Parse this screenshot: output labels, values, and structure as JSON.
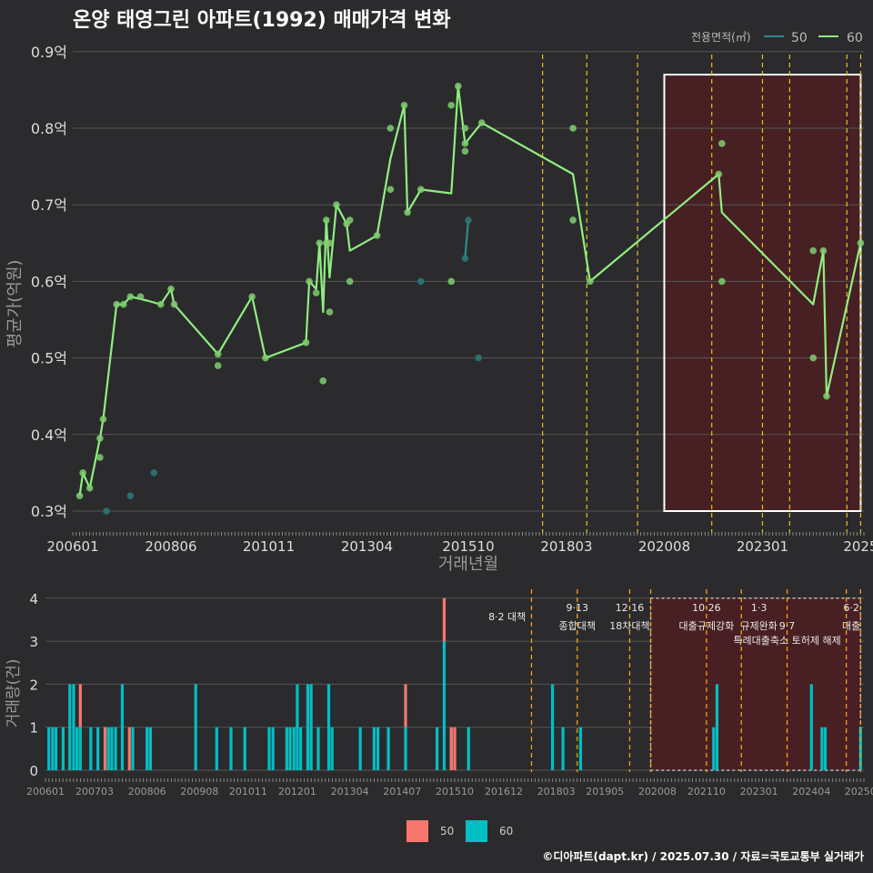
{
  "title": "온양 태영그린 아파트(1992) 매매가격 변화",
  "footer": "©디아파트(dapt.kr) / 2025.07.30 / 자료=국토교통부 실거래가",
  "colors": {
    "bg": "#2b2b2d",
    "s50_line": "#2a8a8a",
    "s60_line": "#90ee80",
    "s50_bar": "#f8766d",
    "s60_bar": "#00bfc4",
    "policy": "#e6c21a",
    "highlight_border": "#ffffff",
    "highlight_fill": "#4a1f22"
  },
  "chart_data": [
    {
      "type": "line",
      "title": "온양 태영그린 아파트(1992) 매매가격 변화",
      "xlabel": "거래년월",
      "ylabel": "평균가(억원)",
      "ylim": [
        0.28,
        0.9
      ],
      "yticks": [
        0.3,
        0.4,
        0.5,
        0.6,
        0.7,
        0.8,
        0.9
      ],
      "ytick_labels": [
        "0.3억",
        "0.4억",
        "0.5억",
        "0.6억",
        "0.7억",
        "0.8억",
        "0.9억"
      ],
      "xlim": [
        2006.0,
        2025.5
      ],
      "xticks": [
        2006.0,
        2008.42,
        2010.83,
        2013.25,
        2015.75,
        2018.17,
        2020.58,
        2023.0,
        2025.42
      ],
      "xtick_labels": [
        "200601",
        "200806",
        "201011",
        "201304",
        "201510",
        "201803",
        "202008",
        "202301",
        "2025"
      ],
      "legend_title": "전용면적(㎡)",
      "legend": [
        "50",
        "60"
      ],
      "policy_lines": [
        2017.58,
        2018.67,
        2019.92,
        2021.75,
        2023.0,
        2023.67,
        2025.08,
        2025.42
      ],
      "highlight_range": {
        "x": [
          2020.58,
          2025.42
        ],
        "y": [
          0.3,
          0.87
        ]
      },
      "series": [
        {
          "name": "60",
          "line": [
            [
              2006.17,
              0.32
            ],
            [
              2006.25,
              0.35
            ],
            [
              2006.42,
              0.33
            ],
            [
              2006.67,
              0.395
            ],
            [
              2006.75,
              0.42
            ],
            [
              2007.08,
              0.57
            ],
            [
              2007.25,
              0.57
            ],
            [
              2007.42,
              0.58
            ],
            [
              2007.83,
              0.575
            ],
            [
              2008.17,
              0.57
            ],
            [
              2008.42,
              0.59
            ],
            [
              2008.5,
              0.57
            ],
            [
              2009.58,
              0.505
            ],
            [
              2010.42,
              0.58
            ],
            [
              2010.75,
              0.5
            ],
            [
              2011.75,
              0.52
            ],
            [
              2011.83,
              0.6
            ],
            [
              2012.0,
              0.59
            ],
            [
              2012.08,
              0.65
            ],
            [
              2012.17,
              0.56
            ],
            [
              2012.25,
              0.68
            ],
            [
              2012.33,
              0.605
            ],
            [
              2012.5,
              0.7
            ],
            [
              2012.75,
              0.675
            ],
            [
              2012.83,
              0.64
            ],
            [
              2013.5,
              0.66
            ],
            [
              2013.83,
              0.76
            ],
            [
              2014.17,
              0.83
            ],
            [
              2014.25,
              0.69
            ],
            [
              2014.58,
              0.72
            ],
            [
              2015.33,
              0.715
            ],
            [
              2015.5,
              0.855
            ],
            [
              2015.67,
              0.78
            ],
            [
              2016.08,
              0.807
            ],
            [
              2018.33,
              0.74
            ],
            [
              2018.75,
              0.6
            ],
            [
              2021.92,
              0.74
            ],
            [
              2022.0,
              0.69
            ],
            [
              2024.25,
              0.57
            ],
            [
              2024.5,
              0.64
            ],
            [
              2024.58,
              0.45
            ],
            [
              2025.42,
              0.65
            ]
          ],
          "points": [
            [
              2006.17,
              0.32
            ],
            [
              2006.25,
              0.35
            ],
            [
              2006.42,
              0.33
            ],
            [
              2006.67,
              0.395
            ],
            [
              2006.67,
              0.37
            ],
            [
              2006.75,
              0.42
            ],
            [
              2007.08,
              0.57
            ],
            [
              2007.25,
              0.57
            ],
            [
              2007.42,
              0.58
            ],
            [
              2007.67,
              0.58
            ],
            [
              2008.17,
              0.57
            ],
            [
              2008.42,
              0.59
            ],
            [
              2008.5,
              0.57
            ],
            [
              2009.58,
              0.505
            ],
            [
              2009.58,
              0.49
            ],
            [
              2010.42,
              0.58
            ],
            [
              2010.75,
              0.5
            ],
            [
              2011.75,
              0.52
            ],
            [
              2011.83,
              0.6
            ],
            [
              2012.0,
              0.585
            ],
            [
              2012.08,
              0.65
            ],
            [
              2012.17,
              0.47
            ],
            [
              2012.25,
              0.65
            ],
            [
              2012.25,
              0.68
            ],
            [
              2012.33,
              0.65
            ],
            [
              2012.33,
              0.56
            ],
            [
              2012.5,
              0.7
            ],
            [
              2012.75,
              0.675
            ],
            [
              2012.83,
              0.68
            ],
            [
              2012.83,
              0.6
            ],
            [
              2013.5,
              0.66
            ],
            [
              2013.83,
              0.8
            ],
            [
              2013.83,
              0.72
            ],
            [
              2014.17,
              0.83
            ],
            [
              2014.25,
              0.69
            ],
            [
              2014.58,
              0.72
            ],
            [
              2015.33,
              0.83
            ],
            [
              2015.33,
              0.6
            ],
            [
              2015.5,
              0.855
            ],
            [
              2015.67,
              0.8
            ],
            [
              2015.67,
              0.78
            ],
            [
              2015.67,
              0.77
            ],
            [
              2016.08,
              0.807
            ],
            [
              2018.33,
              0.8
            ],
            [
              2018.33,
              0.68
            ],
            [
              2018.75,
              0.6
            ],
            [
              2021.92,
              0.74
            ],
            [
              2022.0,
              0.78
            ],
            [
              2022.0,
              0.6
            ],
            [
              2024.25,
              0.64
            ],
            [
              2024.25,
              0.5
            ],
            [
              2024.5,
              0.64
            ],
            [
              2024.58,
              0.45
            ],
            [
              2025.42,
              0.65
            ]
          ]
        },
        {
          "name": "50",
          "line": [
            [
              2015.67,
              0.63
            ],
            [
              2015.75,
              0.68
            ]
          ],
          "points": [
            [
              2006.83,
              0.3
            ],
            [
              2007.42,
              0.32
            ],
            [
              2008.0,
              0.35
            ],
            [
              2014.58,
              0.6
            ],
            [
              2015.67,
              0.63
            ],
            [
              2015.75,
              0.68
            ],
            [
              2016.0,
              0.5
            ]
          ]
        }
      ]
    },
    {
      "type": "bar",
      "ylabel": "거래량(건)",
      "ylim": [
        0,
        4
      ],
      "yticks": [
        0,
        1,
        2,
        3,
        4
      ],
      "xlim": [
        2006.0,
        2025.5
      ],
      "xticks": [
        2006.0,
        2007.17,
        2008.42,
        2009.67,
        2010.83,
        2012.0,
        2013.25,
        2014.5,
        2015.75,
        2016.92,
        2018.17,
        2019.33,
        2020.58,
        2021.75,
        2023.0,
        2024.25,
        2025.42
      ],
      "xtick_labels": [
        "200601",
        "200703",
        "200806",
        "200908",
        "201011",
        "201201",
        "201304",
        "201407",
        "201510",
        "201612",
        "201803",
        "201905",
        "202008",
        "202110",
        "202301",
        "202404",
        "20250"
      ],
      "policy_lines": [
        2017.58,
        2018.67,
        2019.92,
        2020.42,
        2021.75,
        2022.58,
        2023.67,
        2025.08,
        2025.42
      ],
      "highlight_range": {
        "x": [
          2020.42,
          2025.42
        ],
        "y": [
          0,
          4
        ]
      },
      "annotations": [
        {
          "x": 2017.0,
          "level": 1,
          "text": "8·2 대책"
        },
        {
          "x": 2018.67,
          "level": 0,
          "text": "9·13"
        },
        {
          "x": 2018.67,
          "level": 2,
          "text": "종합대책"
        },
        {
          "x": 2019.92,
          "level": 0,
          "text": "12·16"
        },
        {
          "x": 2019.92,
          "level": 2,
          "text": "18차대책"
        },
        {
          "x": 2021.75,
          "level": 0,
          "text": "10·26"
        },
        {
          "x": 2021.75,
          "level": 2,
          "text": "대출규제강화"
        },
        {
          "x": 2023.0,
          "level": 0,
          "text": "1·3"
        },
        {
          "x": 2023.0,
          "level": 2,
          "text": "규제완화"
        },
        {
          "x": 2023.67,
          "level": 2,
          "text": "9·7"
        },
        {
          "x": 2023.67,
          "level": 3,
          "text": "특례대출축소 토허제 해제"
        },
        {
          "x": 2025.2,
          "level": 0,
          "text": "6·2"
        },
        {
          "x": 2025.2,
          "level": 2,
          "text": "대출"
        }
      ],
      "legend": [
        "50",
        "60"
      ],
      "series": [
        {
          "name": "60",
          "data": [
            [
              2006.08,
              1
            ],
            [
              2006.17,
              1
            ],
            [
              2006.25,
              1
            ],
            [
              2006.42,
              1
            ],
            [
              2006.58,
              2
            ],
            [
              2006.67,
              2
            ],
            [
              2006.75,
              1
            ],
            [
              2006.83,
              1
            ],
            [
              2007.08,
              1
            ],
            [
              2007.25,
              1
            ],
            [
              2007.42,
              1
            ],
            [
              2007.5,
              1
            ],
            [
              2007.58,
              1
            ],
            [
              2007.67,
              1
            ],
            [
              2007.83,
              2
            ],
            [
              2008.08,
              1
            ],
            [
              2008.42,
              1
            ],
            [
              2008.5,
              1
            ],
            [
              2009.58,
              2
            ],
            [
              2010.08,
              1
            ],
            [
              2010.42,
              1
            ],
            [
              2010.75,
              1
            ],
            [
              2011.33,
              1
            ],
            [
              2011.42,
              1
            ],
            [
              2011.75,
              1
            ],
            [
              2011.83,
              1
            ],
            [
              2011.92,
              1
            ],
            [
              2012.0,
              2
            ],
            [
              2012.08,
              1
            ],
            [
              2012.25,
              2
            ],
            [
              2012.33,
              2
            ],
            [
              2012.5,
              1
            ],
            [
              2012.75,
              2
            ],
            [
              2012.83,
              1
            ],
            [
              2013.5,
              1
            ],
            [
              2013.83,
              1
            ],
            [
              2013.92,
              1
            ],
            [
              2014.17,
              1
            ],
            [
              2014.58,
              1
            ],
            [
              2015.33,
              1
            ],
            [
              2015.5,
              3
            ],
            [
              2015.67,
              1
            ],
            [
              2016.08,
              1
            ],
            [
              2018.08,
              2
            ],
            [
              2018.33,
              1
            ],
            [
              2018.75,
              1
            ],
            [
              2021.92,
              1
            ],
            [
              2022.0,
              2
            ],
            [
              2024.25,
              2
            ],
            [
              2024.5,
              1
            ],
            [
              2024.58,
              1
            ],
            [
              2025.42,
              1
            ]
          ]
        },
        {
          "name": "50",
          "data": [
            [
              2006.83,
              2
            ],
            [
              2007.42,
              1
            ],
            [
              2008.0,
              1
            ],
            [
              2014.58,
              2
            ],
            [
              2015.5,
              4
            ],
            [
              2015.67,
              1
            ],
            [
              2015.75,
              1
            ]
          ]
        }
      ]
    }
  ]
}
